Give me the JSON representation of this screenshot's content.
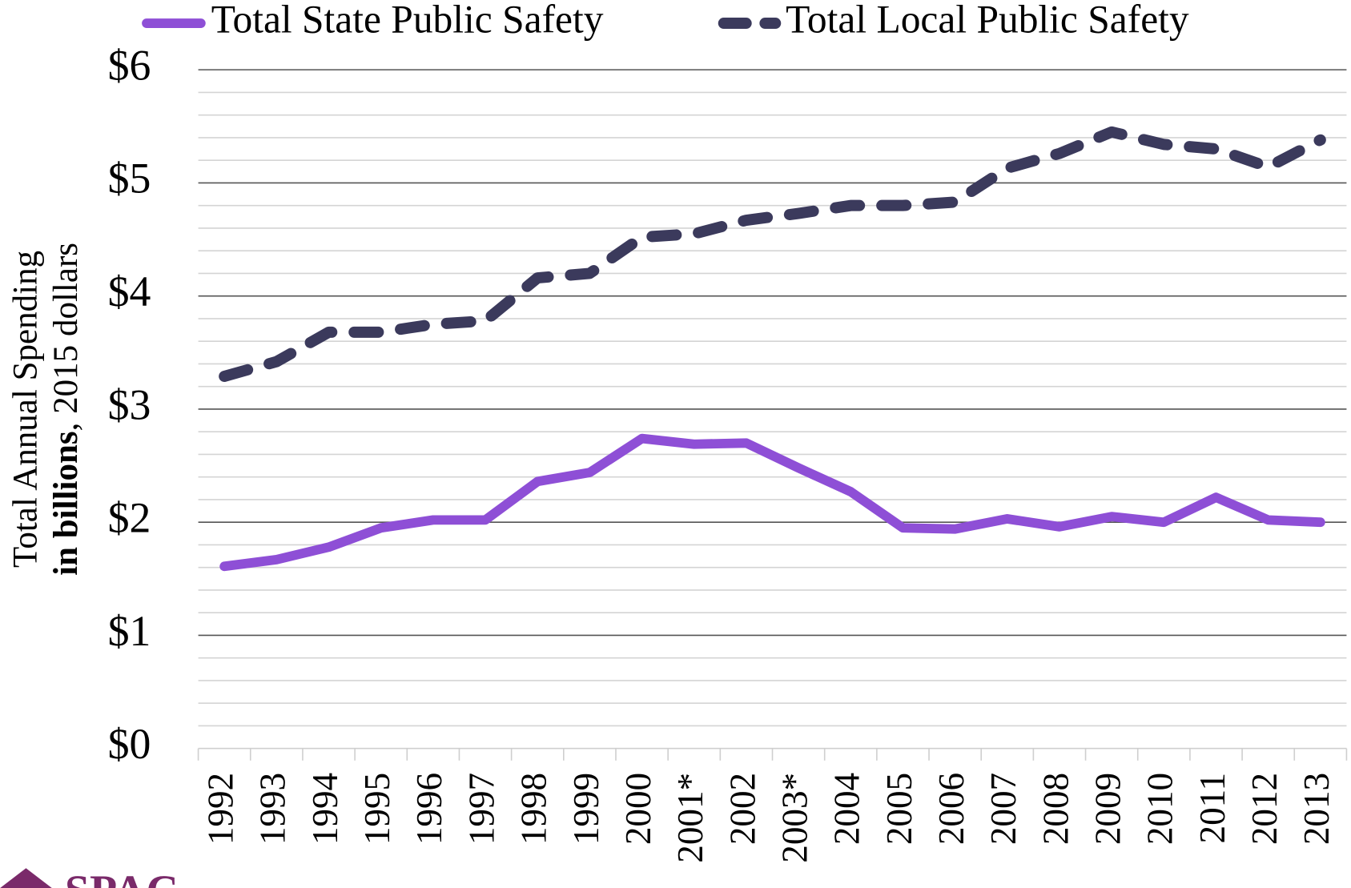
{
  "chart_data": {
    "type": "line",
    "categories": [
      "1992",
      "1993",
      "1994",
      "1995",
      "1996",
      "1997",
      "1998",
      "1999",
      "2000",
      "2001*",
      "2002",
      "2003*",
      "2004",
      "2005",
      "2006",
      "2007",
      "2008",
      "2009",
      "2010",
      "2011",
      "2012",
      "2013"
    ],
    "series": [
      {
        "name": "Total State Public Safety",
        "color": "#8e4fd6",
        "style": "solid",
        "values": [
          1.61,
          1.67,
          1.78,
          1.95,
          2.02,
          2.02,
          2.36,
          2.44,
          2.74,
          2.69,
          2.7,
          2.48,
          2.27,
          1.95,
          1.94,
          2.03,
          1.96,
          2.05,
          2.0,
          2.22,
          2.02,
          2.0
        ]
      },
      {
        "name": "Total Local Public Safety",
        "color": "#3b3a5c",
        "style": "dashed",
        "values": [
          3.29,
          3.42,
          3.68,
          3.68,
          3.75,
          3.78,
          4.16,
          4.2,
          4.52,
          4.55,
          4.67,
          4.73,
          4.8,
          4.8,
          4.83,
          5.13,
          5.26,
          5.45,
          5.34,
          5.3,
          5.14,
          5.38
        ]
      }
    ],
    "ylabel": {
      "line1": "Total Annual Spending",
      "line2_bold": "in billions",
      "line2_rest": ", 2015 dollars"
    },
    "ylim": [
      0,
      6
    ],
    "yticks": [
      {
        "value": 0,
        "label": "$0"
      },
      {
        "value": 1,
        "label": "$1"
      },
      {
        "value": 2,
        "label": "$2"
      },
      {
        "value": 3,
        "label": "$3"
      },
      {
        "value": 4,
        "label": "$4"
      },
      {
        "value": 5,
        "label": "$5"
      },
      {
        "value": 6,
        "label": "$6"
      }
    ],
    "yminorticks": [
      0.2,
      0.4,
      0.6,
      0.8,
      1.2,
      1.4,
      1.6,
      1.8,
      2.2,
      2.4,
      2.6,
      2.8,
      3.2,
      3.4,
      3.6,
      3.8,
      4.2,
      4.4,
      4.6,
      4.8,
      5.2,
      5.4,
      5.6,
      5.8
    ],
    "grid": true,
    "legend": "top",
    "logo": "SPAC"
  }
}
